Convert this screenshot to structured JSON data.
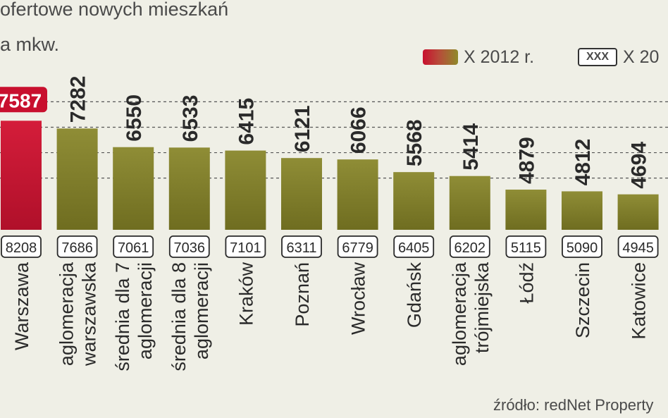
{
  "title": {
    "line1": "ofertowe nowych mieszkań",
    "line2": "a mkw."
  },
  "legend": {
    "current_label": "X 2012 r.",
    "previous_label": "X 20",
    "previous_box_text": "XXX"
  },
  "source": "źródło: redNet Property",
  "colors": {
    "highlight": "#c8102e",
    "bar": "#7f7f2a",
    "background": "#efefe6"
  },
  "chart_data": {
    "type": "bar",
    "title": "",
    "xlabel": "",
    "ylabel": "",
    "grid": true,
    "ylim": [
      0,
      9000
    ],
    "categories": [
      "Warszawa",
      "aglomeracja warszawska",
      "średnia dla 7 aglomeracji",
      "średnia dla 8 aglomeracji",
      "Kraków",
      "Poznań",
      "Wrocław",
      "Gdańsk",
      "aglomeracja trójmiejska",
      "Łódź",
      "Szczecin",
      "Katowice"
    ],
    "category_lines": [
      [
        "Warszawa"
      ],
      [
        "aglomeracja",
        "warszawska"
      ],
      [
        "średnia dla 7",
        "aglomeracji"
      ],
      [
        "średnia dla 8",
        "aglomeracji"
      ],
      [
        "Kraków"
      ],
      [
        "Poznań"
      ],
      [
        "Wrocław"
      ],
      [
        "Gdańsk"
      ],
      [
        "aglomeracja",
        "trójmiejska"
      ],
      [
        "Łódź"
      ],
      [
        "Szczecin"
      ],
      [
        "Katowice"
      ]
    ],
    "series": [
      {
        "name": "X 2012 r.",
        "values": [
          7587,
          7282,
          6550,
          6533,
          6415,
          6121,
          6066,
          5568,
          5414,
          4879,
          4812,
          4694
        ]
      },
      {
        "name": "X 20",
        "values": [
          8208,
          7686,
          7061,
          7036,
          7101,
          6311,
          6779,
          6405,
          6202,
          5115,
          5090,
          4945
        ]
      }
    ]
  }
}
